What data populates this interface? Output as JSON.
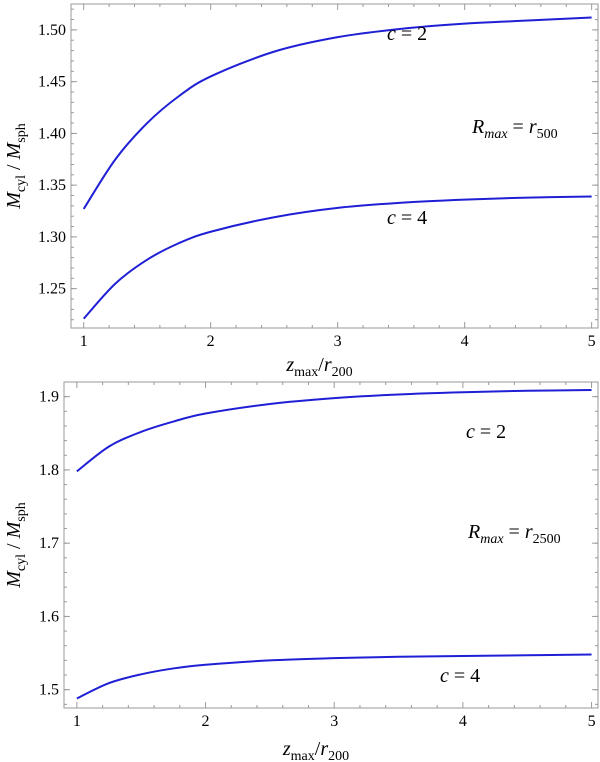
{
  "style": {
    "line_color": "#1f1fd6",
    "frame_color": "#9a9a9a"
  },
  "chart_data": [
    {
      "type": "line",
      "xlabel": {
        "base": "z",
        "sub": "max",
        "mid": "/r",
        "sub2": "200"
      },
      "ylabel": {
        "a": "M",
        "asub": "cyl",
        "mid": " / ",
        "b": "M",
        "bsub": "sph"
      },
      "xlim": [
        0.9,
        5.05
      ],
      "ylim": [
        1.212,
        1.525
      ],
      "xticks": [
        1,
        2,
        3,
        4,
        5
      ],
      "yticks": [
        1.25,
        1.3,
        1.35,
        1.4,
        1.45,
        1.5
      ],
      "yticklabels": [
        "1.25",
        "1.30",
        "1.35",
        "1.40",
        "1.45",
        "1.50"
      ],
      "annotation": {
        "lhs": "R",
        "lhs_sub": "max",
        "eq": " = r",
        "rhs_sub": "500"
      },
      "series": [
        {
          "label": "c = 2",
          "x": [
            1.0,
            1.25,
            1.5,
            1.75,
            2.0,
            2.5,
            3.0,
            3.5,
            4.0,
            4.5,
            5.0
          ],
          "y": [
            1.327,
            1.375,
            1.41,
            1.436,
            1.455,
            1.479,
            1.493,
            1.501,
            1.506,
            1.509,
            1.512
          ]
        },
        {
          "label": "c = 4",
          "x": [
            1.0,
            1.25,
            1.5,
            1.75,
            2.0,
            2.5,
            3.0,
            3.5,
            4.0,
            4.5,
            5.0
          ],
          "y": [
            1.221,
            1.255,
            1.278,
            1.294,
            1.305,
            1.319,
            1.328,
            1.333,
            1.336,
            1.338,
            1.339
          ]
        }
      ]
    },
    {
      "type": "line",
      "xlabel": {
        "base": "z",
        "sub": "max",
        "mid": "/r",
        "sub2": "200"
      },
      "ylabel": {
        "a": "M",
        "asub": "cyl",
        "mid": " / ",
        "b": "M",
        "bsub": "sph"
      },
      "xlim": [
        0.9,
        5.05
      ],
      "ylim": [
        1.475,
        1.92
      ],
      "xticks": [
        1,
        2,
        3,
        4,
        5
      ],
      "yticks": [
        1.5,
        1.6,
        1.7,
        1.8,
        1.9
      ],
      "yticklabels": [
        "1.5",
        "1.6",
        "1.7",
        "1.8",
        "1.9"
      ],
      "annotation": {
        "lhs": "R",
        "lhs_sub": "max",
        "eq": " = r",
        "rhs_sub": "2500"
      },
      "series": [
        {
          "label": "c = 2",
          "x": [
            1.0,
            1.25,
            1.5,
            1.75,
            2.0,
            2.5,
            3.0,
            3.5,
            4.0,
            4.5,
            5.0
          ],
          "y": [
            1.798,
            1.832,
            1.852,
            1.866,
            1.877,
            1.89,
            1.898,
            1.903,
            1.906,
            1.908,
            1.909
          ]
        },
        {
          "label": "c = 4",
          "x": [
            1.0,
            1.25,
            1.5,
            1.75,
            2.0,
            2.5,
            3.0,
            3.5,
            4.0,
            4.5,
            5.0
          ],
          "y": [
            1.488,
            1.509,
            1.521,
            1.529,
            1.534,
            1.54,
            1.543,
            1.545,
            1.546,
            1.547,
            1.548
          ]
        }
      ]
    }
  ]
}
